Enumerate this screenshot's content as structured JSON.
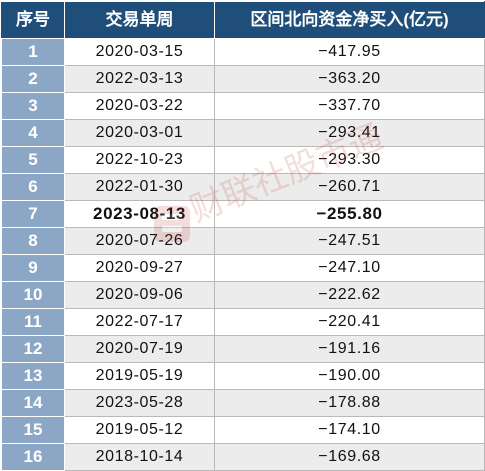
{
  "table": {
    "headers": {
      "rank": "序号",
      "week": "交易单周",
      "net_buy": "区间北向资金净买入(亿元)"
    },
    "highlight_row_index": 6,
    "rows": [
      {
        "rank": "1",
        "week": "2020-03-15",
        "net_buy": "−417.95"
      },
      {
        "rank": "2",
        "week": "2022-03-13",
        "net_buy": "−363.20"
      },
      {
        "rank": "3",
        "week": "2020-03-22",
        "net_buy": "−337.70"
      },
      {
        "rank": "4",
        "week": "2020-03-01",
        "net_buy": "−293.41"
      },
      {
        "rank": "5",
        "week": "2022-10-23",
        "net_buy": "−293.30"
      },
      {
        "rank": "6",
        "week": "2022-01-30",
        "net_buy": "−260.71"
      },
      {
        "rank": "7",
        "week": "2023-08-13",
        "net_buy": "−255.80"
      },
      {
        "rank": "8",
        "week": "2020-07-26",
        "net_buy": "−247.51"
      },
      {
        "rank": "9",
        "week": "2020-09-27",
        "net_buy": "−247.10"
      },
      {
        "rank": "10",
        "week": "2020-09-06",
        "net_buy": "−222.62"
      },
      {
        "rank": "11",
        "week": "2022-07-17",
        "net_buy": "−220.41"
      },
      {
        "rank": "12",
        "week": "2020-07-19",
        "net_buy": "−191.16"
      },
      {
        "rank": "13",
        "week": "2019-05-19",
        "net_buy": "−190.00"
      },
      {
        "rank": "14",
        "week": "2023-05-28",
        "net_buy": "−178.88"
      },
      {
        "rank": "15",
        "week": "2019-05-12",
        "net_buy": "−174.10"
      },
      {
        "rank": "16",
        "week": "2018-10-14",
        "net_buy": "−169.68"
      }
    ]
  },
  "watermark": {
    "text": "财联社股市通",
    "color": "#c0392b"
  },
  "colors": {
    "header_bg": "#1e4e79",
    "rank_cell_bg": "#8ca7c6",
    "stripe_bg": "#ececec",
    "grid_line": "#b9b9b9"
  }
}
